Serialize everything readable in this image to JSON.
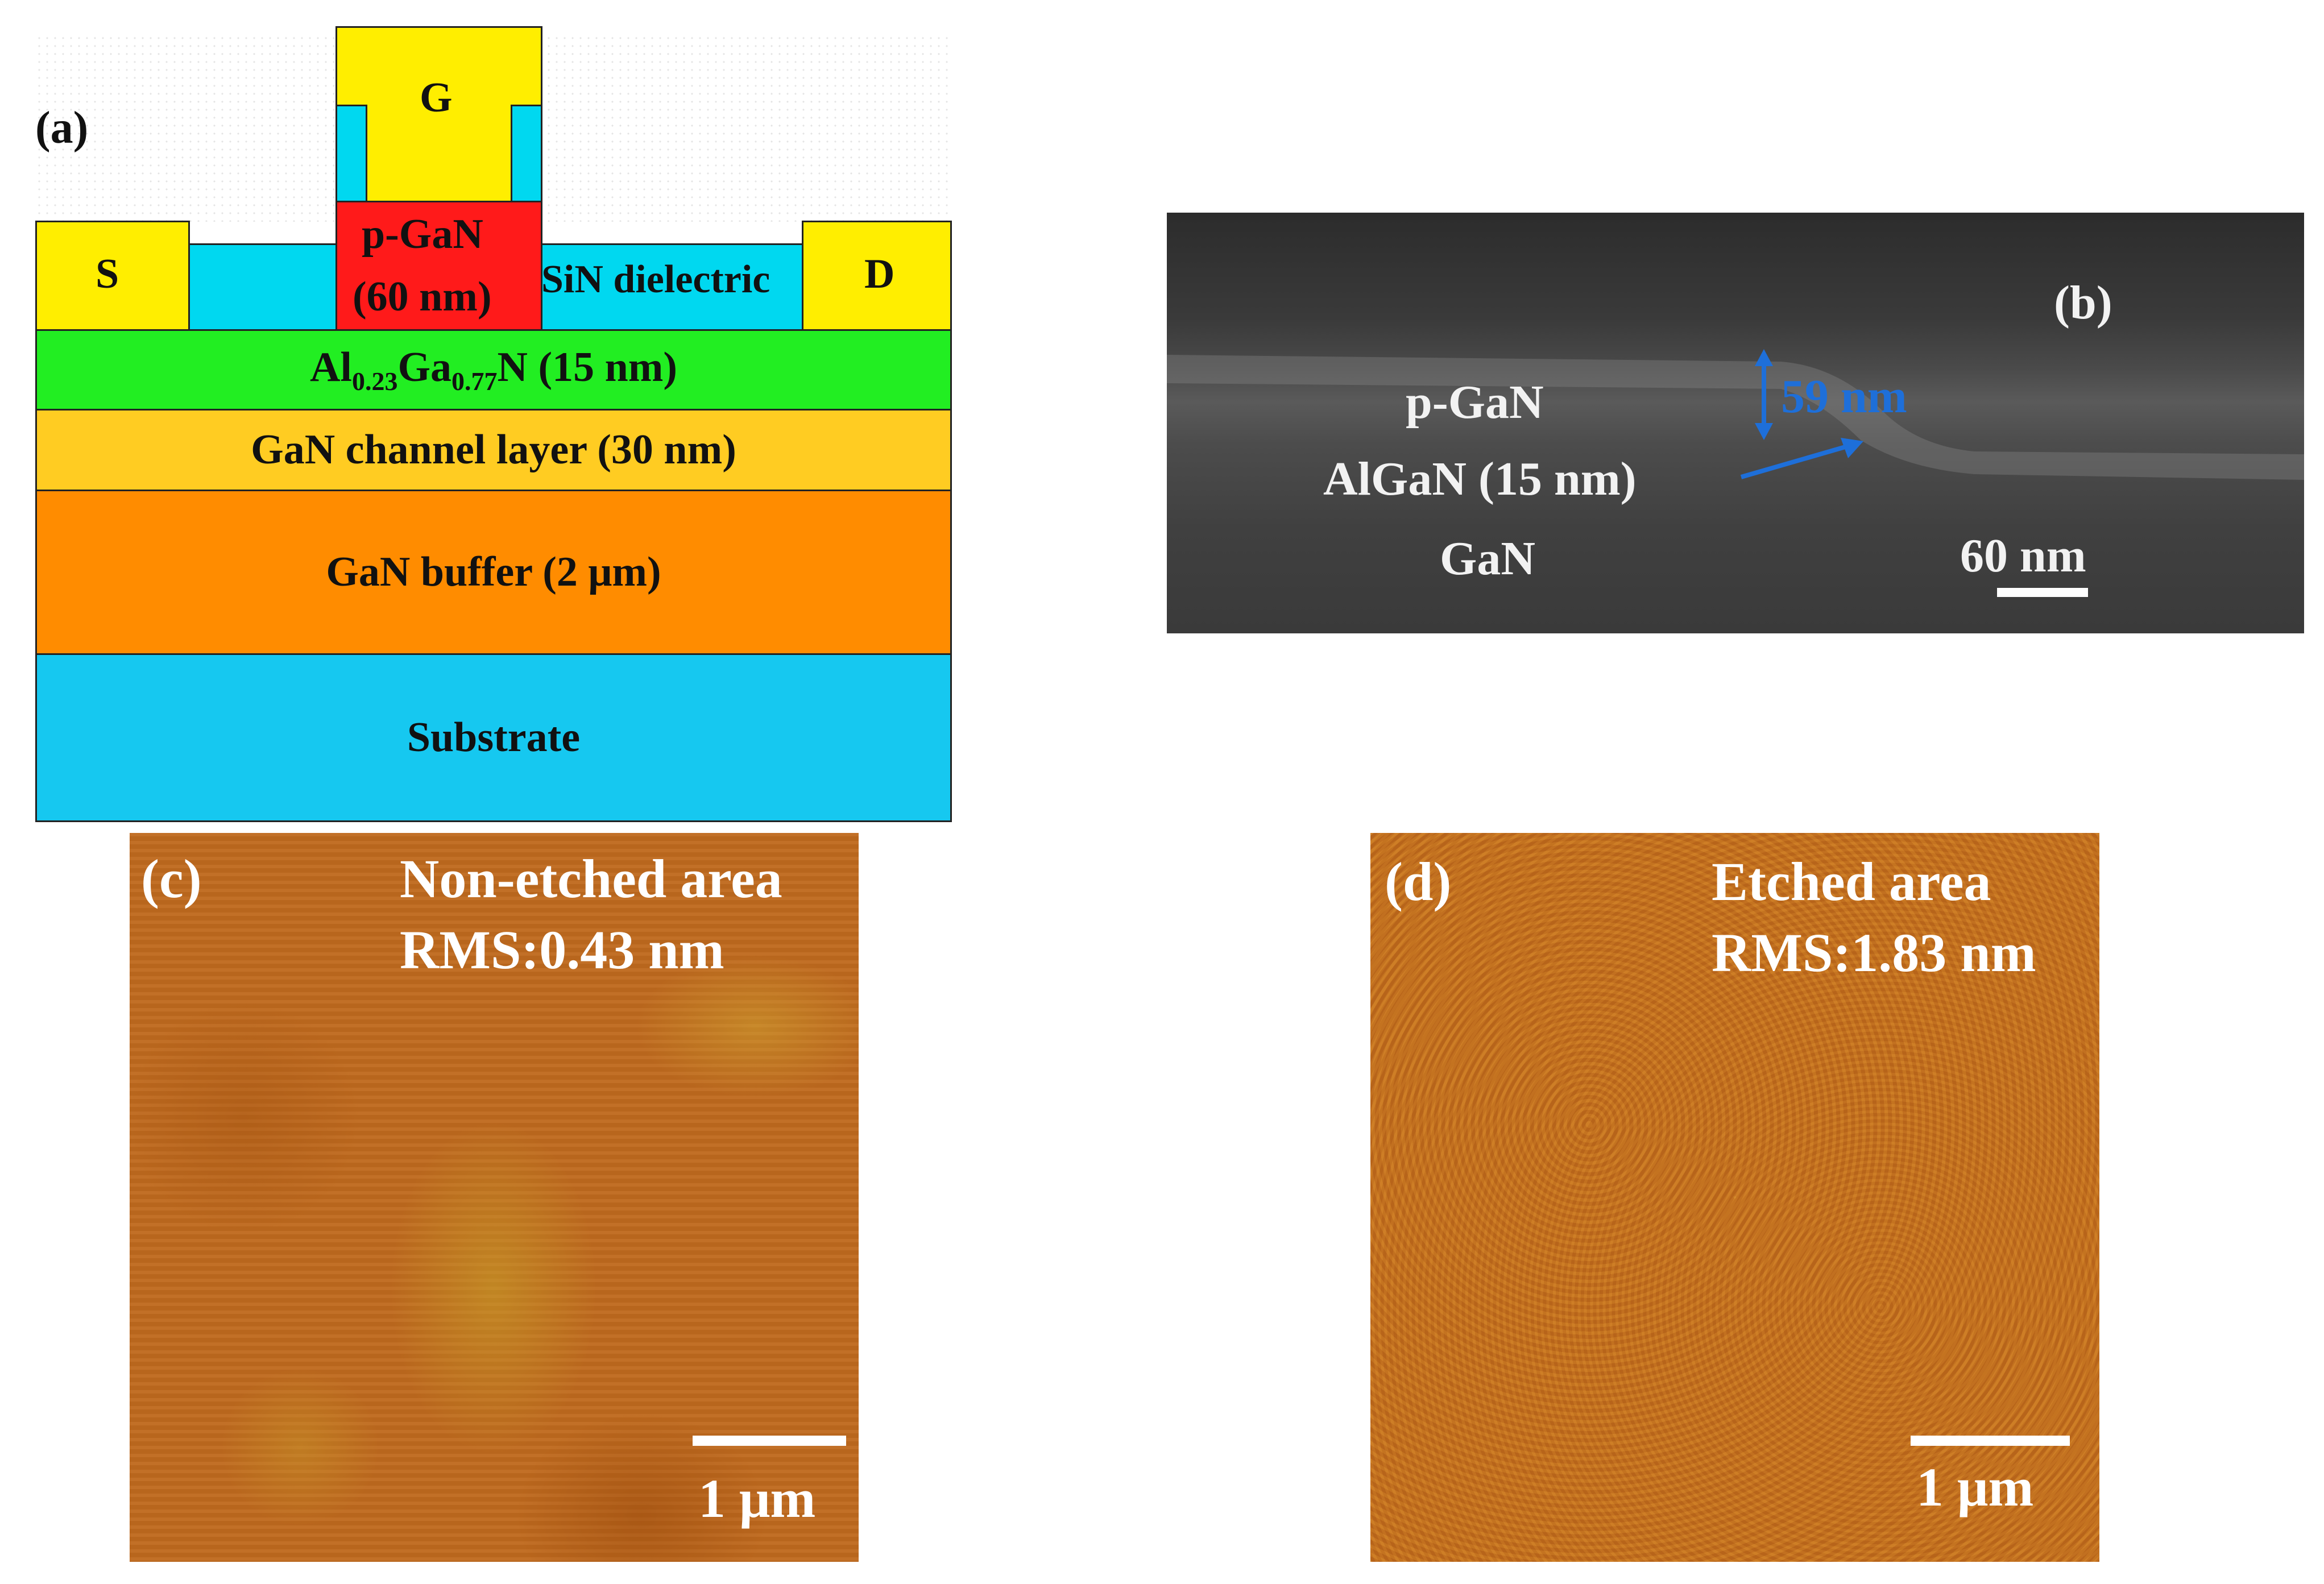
{
  "panels": {
    "a": {
      "label": "(a)",
      "gate": "G",
      "source": "S",
      "drain": "D",
      "pgan_line1": "p-GaN",
      "pgan_line2": "(60 nm)",
      "sin": "SiN dielectric",
      "algan_al": "Al",
      "algan_al_sub": "0.23",
      "algan_ga": "Ga",
      "algan_ga_sub": "0.77",
      "algan_rest": "N (15 nm)",
      "channel": "GaN channel layer (30 nm)",
      "buffer": "GaN buffer (2 μm)",
      "substrate": "Substrate",
      "colors": {
        "metal": "#ffee00",
        "sin": "#00d8f0",
        "pgan": "#ff1a1a",
        "algan": "#22ee22",
        "channel": "#ffcc22",
        "buffer": "#ff8c00",
        "substrate": "#16c8f0"
      }
    },
    "b": {
      "label": "(b)",
      "pgan": "p-GaN",
      "algan": "AlGaN (15 nm)",
      "gan": "GaN",
      "thickness": "59 nm",
      "scale": "60 nm",
      "accent": "#1e6fd9"
    },
    "c": {
      "label": "(c)",
      "title": "Non-etched area",
      "rms": "RMS:0.43 nm",
      "scale": "1 μm"
    },
    "d": {
      "label": "(d)",
      "title": "Etched area",
      "rms": "RMS:1.83 nm",
      "scale": "1 μm"
    }
  }
}
